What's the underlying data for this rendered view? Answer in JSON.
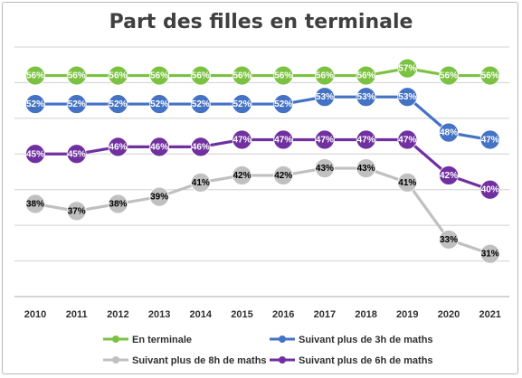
{
  "chart_data": {
    "type": "line",
    "title": "Part des filles en terminale",
    "xlabel": "",
    "ylabel": "",
    "categories": [
      "2010",
      "2011",
      "2012",
      "2013",
      "2014",
      "2015",
      "2016",
      "2017",
      "2018",
      "2019",
      "2020",
      "2021"
    ],
    "ylim": [
      25,
      60
    ],
    "grid": true,
    "legend_position": "bottom",
    "series": [
      {
        "name": "En terminale",
        "color": "#7cc242",
        "label_color": "#ffffff",
        "values": [
          56,
          56,
          56,
          56,
          56,
          56,
          56,
          56,
          56,
          57,
          56,
          56
        ],
        "labels": [
          "56%",
          "56%",
          "56%",
          "56%",
          "56%",
          "56%",
          "56%",
          "56%",
          "56%",
          "57%",
          "56%",
          "56%"
        ]
      },
      {
        "name": "Suivant plus de 3h de maths",
        "color": "#4472c4",
        "label_color": "#ffffff",
        "values": [
          52,
          52,
          52,
          52,
          52,
          52,
          52,
          53,
          53,
          53,
          48,
          47
        ],
        "labels": [
          "52%",
          "52%",
          "52%",
          "52%",
          "52%",
          "52%",
          "52%",
          "53%",
          "53%",
          "53%",
          "48%",
          "47%"
        ]
      },
      {
        "name": "Suivant plus de 8h de maths",
        "color": "#c0c0c0",
        "label_color": "#000000",
        "values": [
          38,
          37,
          38,
          39,
          41,
          42,
          42,
          43,
          43,
          41,
          33,
          31
        ],
        "labels": [
          "38%",
          "37%",
          "38%",
          "39%",
          "41%",
          "42%",
          "42%",
          "43%",
          "43%",
          "41%",
          "33%",
          "31%"
        ]
      },
      {
        "name": "Suivant plus de 6h de maths",
        "color": "#7030a0",
        "label_color": "#ffffff",
        "values": [
          45,
          45,
          46,
          46,
          46,
          47,
          47,
          47,
          47,
          47,
          42,
          40
        ],
        "labels": [
          "45%",
          "45%",
          "46%",
          "46%",
          "46%",
          "47%",
          "47%",
          "47%",
          "47%",
          "47%",
          "42%",
          "40%"
        ]
      }
    ]
  }
}
